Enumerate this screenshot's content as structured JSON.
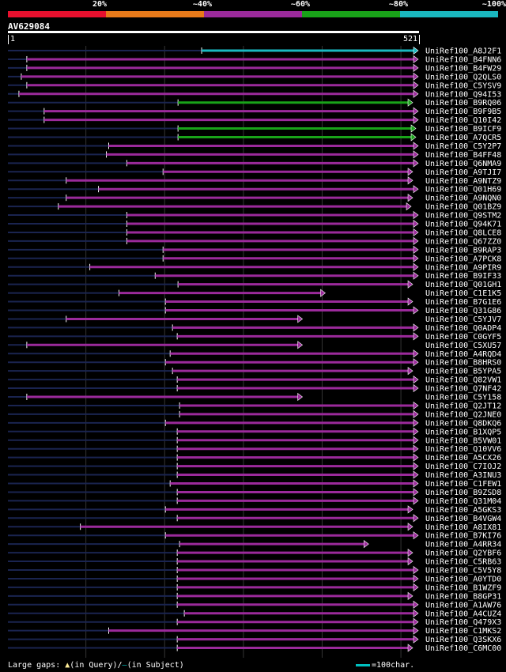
{
  "legend": {
    "labels": [
      "20%",
      "~40%",
      "~60%",
      "~80%",
      "~100%"
    ],
    "colors": [
      "#e8102e",
      "#e87a1a",
      "#9b2a9b",
      "#19a319",
      "#1ab8c0"
    ]
  },
  "query": {
    "id": "AV629084",
    "start": "1",
    "end": "521"
  },
  "hits": [
    {
      "name": "UniRef100_A8J2F1",
      "start": 247,
      "end": 521,
      "color": "#1ab8c0"
    },
    {
      "name": "UniRef100_B4FNN6",
      "start": 25,
      "end": 521,
      "color": "#9b2a9b"
    },
    {
      "name": "UniRef100_B4FW29",
      "start": 25,
      "end": 521,
      "color": "#9b2a9b"
    },
    {
      "name": "UniRef100_Q2QLS0",
      "start": 18,
      "end": 521,
      "color": "#9b2a9b"
    },
    {
      "name": "UniRef100_C5YSV9",
      "start": 25,
      "end": 521,
      "color": "#9b2a9b"
    },
    {
      "name": "UniRef100_Q94I53",
      "start": 15,
      "end": 521,
      "color": "#9b2a9b"
    },
    {
      "name": "UniRef100_B9RQ06",
      "start": 217,
      "end": 514,
      "color": "#19a319"
    },
    {
      "name": "UniRef100_B9F9B5",
      "start": 47,
      "end": 521,
      "color": "#9b2a9b"
    },
    {
      "name": "UniRef100_Q10I42",
      "start": 47,
      "end": 521,
      "color": "#9b2a9b"
    },
    {
      "name": "UniRef100_B9ICF9",
      "start": 217,
      "end": 518,
      "color": "#19a319"
    },
    {
      "name": "UniRef100_A7QCR5",
      "start": 217,
      "end": 518,
      "color": "#19a319"
    },
    {
      "name": "UniRef100_C5Y2P7",
      "start": 129,
      "end": 521,
      "color": "#9b2a9b"
    },
    {
      "name": "UniRef100_B4FF48",
      "start": 126,
      "end": 521,
      "color": "#9b2a9b"
    },
    {
      "name": "UniRef100_Q6NMA9",
      "start": 152,
      "end": 521,
      "color": "#9b2a9b"
    },
    {
      "name": "UniRef100_A9TJI7",
      "start": 198,
      "end": 514,
      "color": "#9b2a9b"
    },
    {
      "name": "UniRef100_A9NTZ9",
      "start": 75,
      "end": 514,
      "color": "#9b2a9b"
    },
    {
      "name": "UniRef100_Q01H69",
      "start": 116,
      "end": 521,
      "color": "#9b2a9b"
    },
    {
      "name": "UniRef100_A9NQN0",
      "start": 75,
      "end": 514,
      "color": "#9b2a9b"
    },
    {
      "name": "UniRef100_Q01BZ9",
      "start": 65,
      "end": 512,
      "color": "#9b2a9b"
    },
    {
      "name": "UniRef100_Q9STM2",
      "start": 152,
      "end": 521,
      "color": "#9b2a9b"
    },
    {
      "name": "UniRef100_Q94K71",
      "start": 152,
      "end": 521,
      "color": "#9b2a9b"
    },
    {
      "name": "UniRef100_Q8LCE8",
      "start": 152,
      "end": 521,
      "color": "#9b2a9b"
    },
    {
      "name": "UniRef100_Q67ZZ0",
      "start": 152,
      "end": 521,
      "color": "#9b2a9b"
    },
    {
      "name": "UniRef100_B9RAP3",
      "start": 198,
      "end": 521,
      "color": "#9b2a9b"
    },
    {
      "name": "UniRef100_A7PCK8",
      "start": 198,
      "end": 521,
      "color": "#9b2a9b"
    },
    {
      "name": "UniRef100_A9PIR9",
      "start": 105,
      "end": 521,
      "color": "#9b2a9b"
    },
    {
      "name": "UniRef100_B9IF33",
      "start": 188,
      "end": 521,
      "color": "#9b2a9b"
    },
    {
      "name": "UniRef100_Q01GH1",
      "start": 217,
      "end": 514,
      "color": "#9b2a9b"
    },
    {
      "name": "UniRef100_C1E1K5",
      "start": 142,
      "end": 403,
      "color": "#9b2a9b"
    },
    {
      "name": "UniRef100_B7G1E6",
      "start": 201,
      "end": 514,
      "color": "#9b2a9b"
    },
    {
      "name": "UniRef100_Q31G86",
      "start": 201,
      "end": 521,
      "color": "#9b2a9b"
    },
    {
      "name": "UniRef100_C5YJV7",
      "start": 75,
      "end": 374,
      "color": "#9b2a9b"
    },
    {
      "name": "UniRef100_Q0ADP4",
      "start": 210,
      "end": 521,
      "color": "#9b2a9b"
    },
    {
      "name": "UniRef100_C0GYF5",
      "start": 216,
      "end": 521,
      "color": "#9b2a9b"
    },
    {
      "name": "UniRef100_C5XU57",
      "start": 25,
      "end": 374,
      "color": "#9b2a9b"
    },
    {
      "name": "UniRef100_A4RQD4",
      "start": 207,
      "end": 521,
      "color": "#9b2a9b"
    },
    {
      "name": "UniRef100_B8HRS0",
      "start": 201,
      "end": 521,
      "color": "#9b2a9b"
    },
    {
      "name": "UniRef100_B5YPA5",
      "start": 210,
      "end": 514,
      "color": "#9b2a9b"
    },
    {
      "name": "UniRef100_Q82VW1",
      "start": 216,
      "end": 521,
      "color": "#9b2a9b"
    },
    {
      "name": "UniRef100_Q7NF42",
      "start": 216,
      "end": 521,
      "color": "#9b2a9b"
    },
    {
      "name": "UniRef100_C5Y158",
      "start": 25,
      "end": 374,
      "color": "#9b2a9b"
    },
    {
      "name": "UniRef100_Q2JT12",
      "start": 219,
      "end": 521,
      "color": "#9b2a9b"
    },
    {
      "name": "UniRef100_Q2JNE0",
      "start": 219,
      "end": 521,
      "color": "#9b2a9b"
    },
    {
      "name": "UniRef100_Q8DKQ6",
      "start": 201,
      "end": 521,
      "color": "#9b2a9b"
    },
    {
      "name": "UniRef100_B1XQP5",
      "start": 216,
      "end": 521,
      "color": "#9b2a9b"
    },
    {
      "name": "UniRef100_B5VW01",
      "start": 216,
      "end": 521,
      "color": "#9b2a9b"
    },
    {
      "name": "UniRef100_Q10VV6",
      "start": 216,
      "end": 521,
      "color": "#9b2a9b"
    },
    {
      "name": "UniRef100_A5CX26",
      "start": 216,
      "end": 521,
      "color": "#9b2a9b"
    },
    {
      "name": "UniRef100_C7IOJ2",
      "start": 216,
      "end": 521,
      "color": "#9b2a9b"
    },
    {
      "name": "UniRef100_A3INU3",
      "start": 216,
      "end": 521,
      "color": "#9b2a9b"
    },
    {
      "name": "UniRef100_C1FEW1",
      "start": 207,
      "end": 521,
      "color": "#9b2a9b"
    },
    {
      "name": "UniRef100_B9ZSD8",
      "start": 216,
      "end": 521,
      "color": "#9b2a9b"
    },
    {
      "name": "UniRef100_Q31M04",
      "start": 216,
      "end": 521,
      "color": "#9b2a9b"
    },
    {
      "name": "UniRef100_A5GKS3",
      "start": 201,
      "end": 514,
      "color": "#9b2a9b"
    },
    {
      "name": "UniRef100_B4VGW4",
      "start": 216,
      "end": 521,
      "color": "#9b2a9b"
    },
    {
      "name": "UniRef100_A8IX81",
      "start": 93,
      "end": 514,
      "color": "#9b2a9b"
    },
    {
      "name": "UniRef100_B7KI76",
      "start": 201,
      "end": 521,
      "color": "#9b2a9b"
    },
    {
      "name": "UniRef100_A4RR34",
      "start": 219,
      "end": 458,
      "color": "#9b2a9b"
    },
    {
      "name": "UniRef100_Q2YBF6",
      "start": 216,
      "end": 514,
      "color": "#9b2a9b"
    },
    {
      "name": "UniRef100_C5RB63",
      "start": 216,
      "end": 514,
      "color": "#9b2a9b"
    },
    {
      "name": "UniRef100_C5V5Y8",
      "start": 216,
      "end": 521,
      "color": "#9b2a9b"
    },
    {
      "name": "UniRef100_A0YTD0",
      "start": 216,
      "end": 521,
      "color": "#9b2a9b"
    },
    {
      "name": "UniRef100_B1WZF9",
      "start": 216,
      "end": 521,
      "color": "#9b2a9b"
    },
    {
      "name": "UniRef100_B8GP31",
      "start": 216,
      "end": 514,
      "color": "#9b2a9b"
    },
    {
      "name": "UniRef100_A1AW76",
      "start": 216,
      "end": 521,
      "color": "#9b2a9b"
    },
    {
      "name": "UniRef100_A4CUZ4",
      "start": 225,
      "end": 521,
      "color": "#9b2a9b"
    },
    {
      "name": "UniRef100_Q479X3",
      "start": 216,
      "end": 521,
      "color": "#9b2a9b"
    },
    {
      "name": "UniRef100_C1MKS2",
      "start": 129,
      "end": 521,
      "color": "#9b2a9b"
    },
    {
      "name": "UniRef100_Q3SKX6",
      "start": 216,
      "end": 521,
      "color": "#9b2a9b"
    },
    {
      "name": "UniRef100_C6MC00",
      "start": 216,
      "end": 514,
      "color": "#9b2a9b"
    }
  ],
  "footer": {
    "gaps_label": "Large gaps:",
    "query_label": "(in Query)/",
    "subject_label": "(in Subject)",
    "scale_label": "=100char."
  },
  "scale_color": "#00c0c0"
}
